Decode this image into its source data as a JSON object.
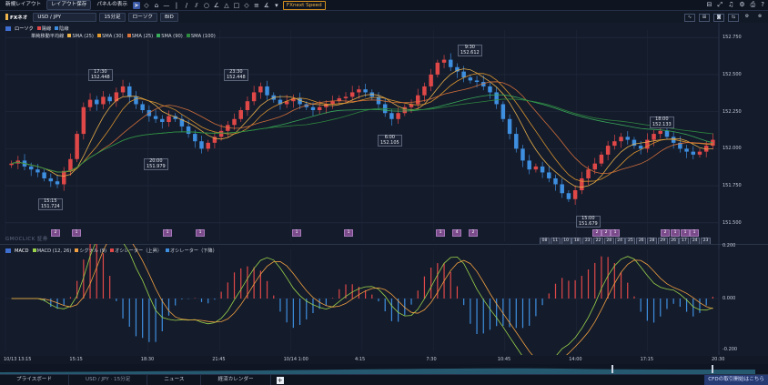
{
  "toolbar": {
    "new_layout": "新規レイアウト",
    "save_layout": "レイアウト保存",
    "panel_display": "パネルの表示",
    "fx_speed": "FXnext Speed"
  },
  "symbol_bar": {
    "symbol": "FXネオ",
    "pair": "USD / JPY",
    "interval": "15分足",
    "chart_type": "ローソク",
    "side": "BID"
  },
  "main_legend": {
    "collapse": "ローソク",
    "bull_label": "陽線",
    "bear_label": "陰線",
    "ma_group": "単純移動平均線",
    "items": [
      {
        "label": "SMA (25)",
        "color": "#f0b54a"
      },
      {
        "label": "SMA (30)",
        "color": "#e39a2e"
      },
      {
        "label": "SMA (25)",
        "color": "#d9733a"
      },
      {
        "label": "SMA (90)",
        "color": "#3aaf5b"
      },
      {
        "label": "SMA (100)",
        "color": "#2e8b3f"
      }
    ]
  },
  "price_axis": [
    "152.750",
    "152.500",
    "152.250",
    "152.000",
    "151.750",
    "151.500"
  ],
  "price_callouts": [
    {
      "time": "17:30",
      "price": "152.448"
    },
    {
      "time": "23:30",
      "price": "152.448"
    },
    {
      "time": "9:30",
      "price": "152.612"
    },
    {
      "time": "18:00",
      "price": "152.133"
    },
    {
      "time": "6:00",
      "price": "152.105"
    },
    {
      "time": "20:00",
      "price": "151.979"
    },
    {
      "time": "15:15",
      "price": "151.724"
    },
    {
      "time": "15:00",
      "price": "151.679"
    }
  ],
  "event_badges": [
    "2",
    "1",
    "1",
    "1",
    "1",
    "1",
    "1",
    "4",
    "2",
    "2",
    "2",
    "1",
    "2",
    "1",
    "1",
    "1"
  ],
  "date_boxes": [
    "08",
    "11",
    "10",
    "18",
    "23",
    "22",
    "28",
    "24",
    "25",
    "26",
    "28",
    "29",
    "26",
    "17",
    "24",
    "23"
  ],
  "logo": "GMOCLICK 証券",
  "macd_legend": {
    "title": "MACD",
    "items": [
      {
        "label": "MACD (12, 26)",
        "color": "#9ad34a"
      },
      {
        "label": "シグナル (9)",
        "color": "#f0a040"
      },
      {
        "label": "オシレーター（上昇）",
        "color": "#e04848"
      },
      {
        "label": "オシレーター（下降）",
        "color": "#3e8fe0"
      }
    ]
  },
  "macd_axis": [
    "0.200",
    "0.000",
    "-0.200"
  ],
  "time_axis": [
    "10/13 13:15",
    "15:15",
    "18:30",
    "21:45",
    "10/14 1:00",
    "4:15",
    "7:30",
    "10:45",
    "14:00",
    "17:15",
    "20:30"
  ],
  "bottom_tabs": [
    "プライスボード",
    "USD / JPY · 15分足",
    "ニュース",
    "経済カレンダー"
  ],
  "cfd_notice": "CFDの取引開始はこちら",
  "colors": {
    "bull": "#e04848",
    "bear": "#3e8fe0",
    "background": "#141b2b"
  },
  "chart_data": {
    "type": "candlestick",
    "ylim": [
      151.45,
      152.8
    ],
    "ohlc_close": [
      151.9,
      151.92,
      151.88,
      151.86,
      151.84,
      151.8,
      151.78,
      151.76,
      151.85,
      151.93,
      152.1,
      152.28,
      152.33,
      152.3,
      152.35,
      152.32,
      152.38,
      152.42,
      152.35,
      152.3,
      152.26,
      152.22,
      152.2,
      152.18,
      152.22,
      152.2,
      152.15,
      152.1,
      152.05,
      152.0,
      152.04,
      152.08,
      152.12,
      152.16,
      152.2,
      152.26,
      152.32,
      152.38,
      152.42,
      152.36,
      152.33,
      152.3,
      152.32,
      152.34,
      152.3,
      152.28,
      152.26,
      152.28,
      152.3,
      152.32,
      152.34,
      152.35,
      152.38,
      152.4,
      152.38,
      152.35,
      152.3,
      152.24,
      152.2,
      152.24,
      152.28,
      152.3,
      152.36,
      152.42,
      152.5,
      152.58,
      152.6,
      152.55,
      152.52,
      152.48,
      152.46,
      152.45,
      152.42,
      152.38,
      152.3,
      152.2,
      152.1,
      152.0,
      151.92,
      151.86,
      151.88,
      151.84,
      151.8,
      151.76,
      151.7,
      151.66,
      151.72,
      151.8,
      151.86,
      151.9,
      151.96,
      152.02,
      152.05,
      152.08,
      152.06,
      152.02,
      152.0,
      152.06,
      152.1,
      152.12,
      152.08,
      152.04,
      152.0,
      151.98,
      151.96,
      151.98,
      152.02,
      152.06
    ]
  }
}
